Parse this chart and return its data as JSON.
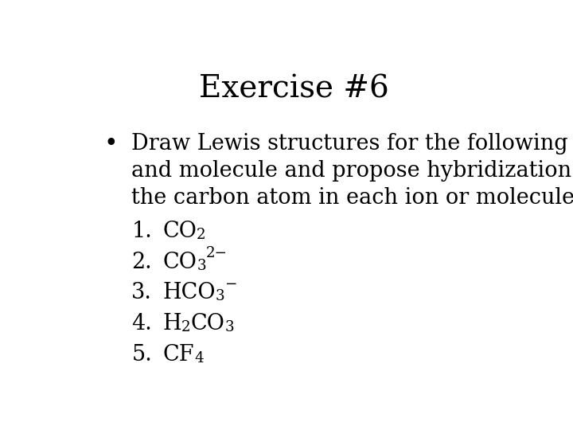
{
  "title": "Exercise #6",
  "background_color": "#ffffff",
  "text_color": "#000000",
  "title_fontsize": 28,
  "body_fontsize": 19.5,
  "list_fontsize": 19.5,
  "font_family": "DejaVu Serif",
  "bullet_text_line1": "Draw Lewis structures for the following ions",
  "bullet_text_line2": "and molecule and propose hybridization on",
  "bullet_text_line3": "the carbon atom in each ion or molecule.",
  "items": [
    {
      "num": "1.",
      "parts": [
        {
          "text": "CO",
          "style": "normal"
        },
        {
          "text": "2",
          "style": "sub"
        }
      ]
    },
    {
      "num": "2.",
      "parts": [
        {
          "text": "CO",
          "style": "normal"
        },
        {
          "text": "3",
          "style": "sub"
        },
        {
          "text": "2−",
          "style": "sup"
        }
      ]
    },
    {
      "num": "3.",
      "parts": [
        {
          "text": "HCO",
          "style": "normal"
        },
        {
          "text": "3",
          "style": "sub"
        },
        {
          "text": "−",
          "style": "sup"
        }
      ]
    },
    {
      "num": "4.",
      "parts": [
        {
          "text": "H",
          "style": "normal"
        },
        {
          "text": "2",
          "style": "sub"
        },
        {
          "text": "CO",
          "style": "normal"
        },
        {
          "text": "3",
          "style": "sub"
        }
      ]
    },
    {
      "num": "5.",
      "parts": [
        {
          "text": "CF",
          "style": "normal"
        },
        {
          "text": "4",
          "style": "sub"
        }
      ]
    }
  ]
}
